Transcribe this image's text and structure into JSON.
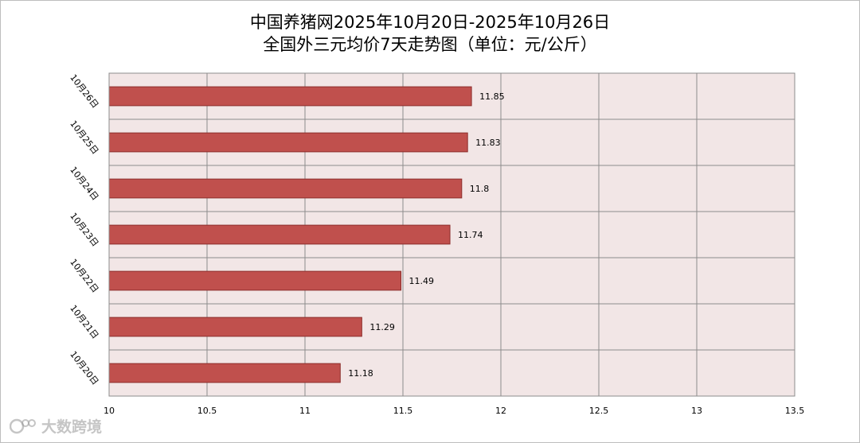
{
  "title": {
    "line1": "中国养猪网2025年10月20日-2025年10月26日",
    "line2": "全国外三元均价7天走势图（单位：元/公斤）"
  },
  "watermark": {
    "text": "大数跨境",
    "icon": "bubble-logo-icon"
  },
  "colors": {
    "bar_fill": "#c0504d",
    "bar_stroke": "#8c2d2b",
    "plot_background": "#f2e6e6",
    "grid": "#8c8c8c"
  },
  "chart_data": {
    "type": "bar",
    "orientation": "horizontal",
    "categories": [
      "10月26日",
      "10月25日",
      "10月24日",
      "10月23日",
      "10月22日",
      "10月21日",
      "10月20日"
    ],
    "values": [
      11.85,
      11.83,
      11.8,
      11.74,
      11.49,
      11.29,
      11.18
    ],
    "data_labels": [
      "11.85",
      "11.83",
      "11.8",
      "11.74",
      "11.49",
      "11.29",
      "11.18"
    ],
    "xlim": [
      10,
      13.5
    ],
    "xticks": [
      "10",
      "10.5",
      "11",
      "11.5",
      "12",
      "12.5",
      "13",
      "13.5"
    ],
    "xlabel": "",
    "ylabel": "",
    "grid": true,
    "legend": "none"
  }
}
